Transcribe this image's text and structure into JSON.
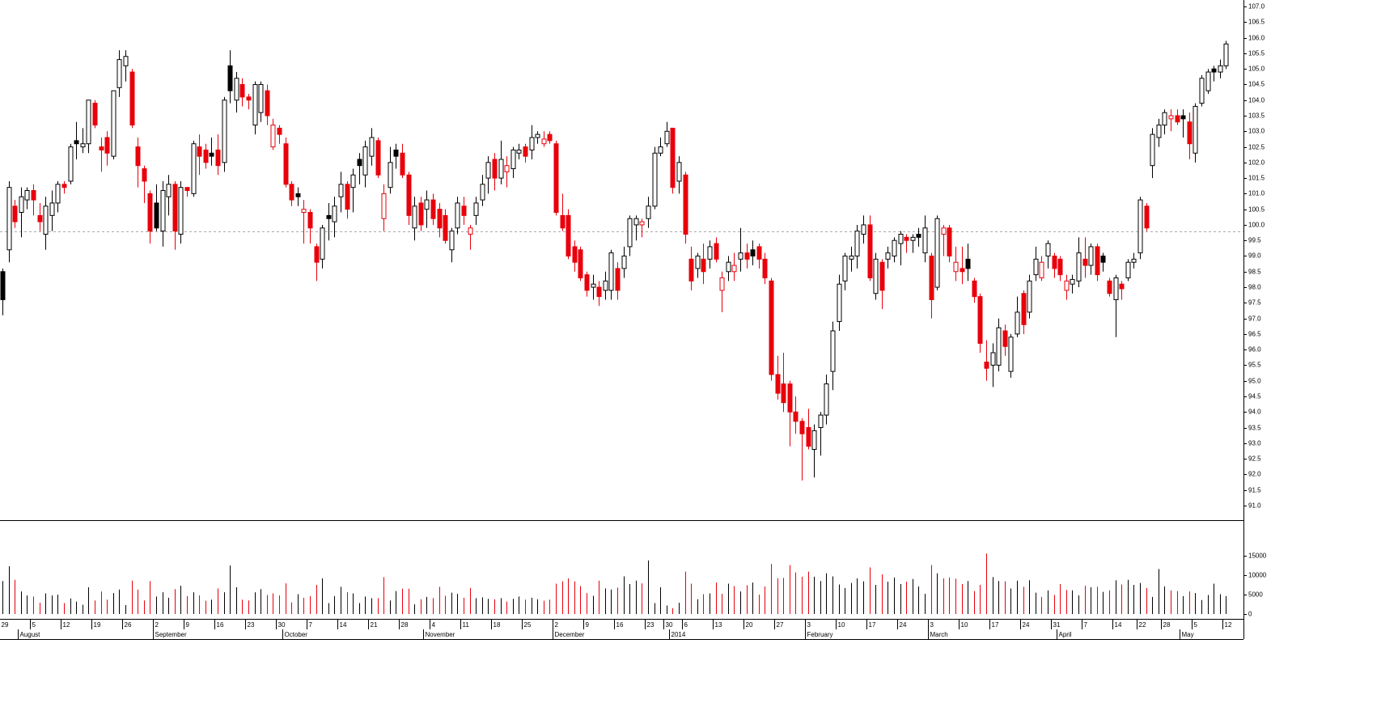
{
  "chart_data": {
    "type": "candlestick",
    "categories": [
      "29",
      null,
      null,
      null,
      null,
      "5",
      null,
      null,
      null,
      null,
      "12",
      null,
      null,
      null,
      null,
      "19",
      null,
      null,
      null,
      null,
      "26",
      null,
      null,
      null,
      null,
      "2",
      null,
      null,
      null,
      null,
      "9",
      null,
      null,
      null,
      null,
      "16",
      null,
      null,
      null,
      null,
      "23",
      null,
      null,
      null,
      null,
      "30",
      null,
      null,
      null,
      null,
      "7",
      null,
      null,
      null,
      null,
      "14",
      null,
      null,
      null,
      null,
      "21",
      null,
      null,
      null,
      null,
      "28",
      null,
      null,
      null,
      null,
      "4",
      null,
      null,
      null,
      null,
      "11",
      null,
      null,
      null,
      null,
      "18",
      null,
      null,
      null,
      null,
      "25",
      null,
      null,
      null,
      null,
      "2",
      null,
      null,
      null,
      null,
      "9",
      null,
      null,
      null,
      null,
      "16",
      null,
      null,
      null,
      null,
      "23",
      null,
      null,
      "30",
      null,
      null,
      "6",
      null,
      null,
      null,
      null,
      "13",
      null,
      null,
      null,
      null,
      "20",
      null,
      null,
      null,
      null,
      "27",
      null,
      null,
      null,
      null,
      "3",
      null,
      null,
      null,
      null,
      "10",
      null,
      null,
      null,
      null,
      "17",
      null,
      null,
      null,
      null,
      "24",
      null,
      null,
      null,
      null,
      "3",
      null,
      null,
      null,
      null,
      "10",
      null,
      null,
      null,
      null,
      "17",
      null,
      null,
      null,
      null,
      "24",
      null,
      null,
      null,
      null,
      "31",
      null,
      null,
      null,
      null,
      "7",
      null,
      null,
      null,
      null,
      "14",
      null,
      null,
      null,
      "22",
      null,
      null,
      null,
      "28",
      null,
      null,
      null,
      null,
      "5",
      null,
      null,
      null,
      null,
      "12"
    ],
    "months": [
      null,
      null,
      null,
      "August",
      null,
      null,
      null,
      null,
      null,
      null,
      null,
      null,
      null,
      null,
      null,
      null,
      null,
      null,
      null,
      null,
      null,
      null,
      null,
      null,
      null,
      "September",
      null,
      null,
      null,
      null,
      null,
      null,
      null,
      null,
      null,
      null,
      null,
      null,
      null,
      null,
      null,
      null,
      null,
      null,
      null,
      null,
      "October",
      null,
      null,
      null,
      null,
      null,
      null,
      null,
      null,
      null,
      null,
      null,
      null,
      null,
      null,
      null,
      null,
      null,
      null,
      null,
      null,
      null,
      null,
      "November",
      null,
      null,
      null,
      null,
      null,
      null,
      null,
      null,
      null,
      null,
      null,
      null,
      null,
      null,
      null,
      null,
      null,
      null,
      null,
      null,
      "December",
      null,
      null,
      null,
      null,
      null,
      null,
      null,
      null,
      null,
      null,
      null,
      null,
      null,
      null,
      null,
      null,
      null,
      null,
      "2014",
      null,
      null,
      null,
      null,
      null,
      null,
      null,
      null,
      null,
      null,
      null,
      null,
      null,
      null,
      null,
      null,
      null,
      null,
      null,
      null,
      null,
      "February",
      null,
      null,
      null,
      null,
      null,
      null,
      null,
      null,
      null,
      null,
      null,
      null,
      null,
      null,
      null,
      null,
      null,
      null,
      null,
      "March",
      null,
      null,
      null,
      null,
      null,
      null,
      null,
      null,
      null,
      null,
      null,
      null,
      null,
      null,
      null,
      null,
      null,
      null,
      null,
      null,
      "April",
      null,
      null,
      null,
      null,
      null,
      null,
      null,
      null,
      null,
      null,
      null,
      null,
      null,
      null,
      null,
      null,
      null,
      null,
      null,
      "May",
      null,
      null,
      null,
      null,
      null,
      null,
      null
    ],
    "open": [
      98.5,
      99.2,
      100.6,
      100.4,
      100.8,
      101.1,
      100.3,
      99.7,
      100.3,
      100.7,
      101.3,
      101.4,
      102.7,
      102.5,
      102.6,
      103.9,
      102.5,
      102.8,
      102.2,
      104.4,
      105.1,
      104.9,
      102.5,
      101.8,
      101.0,
      100.7,
      99.8,
      100.9,
      101.3,
      99.7,
      101.2,
      101.0,
      102.5,
      102.4,
      102.3,
      102.4,
      102.0,
      105.1,
      104.0,
      104.5,
      104.1,
      103.2,
      103.6,
      104.3,
      102.5,
      103.1,
      102.6,
      101.3,
      101.0,
      100.4,
      100.4,
      99.3,
      98.9,
      100.3,
      100.1,
      100.9,
      101.3,
      101.2,
      102.1,
      101.6,
      102.2,
      102.7,
      100.2,
      101.2,
      102.4,
      102.3,
      101.6,
      99.9,
      100.7,
      100.5,
      100.8,
      100.5,
      100.3,
      99.2,
      99.9,
      100.6,
      99.7,
      100.3,
      100.8,
      101.5,
      102.1,
      101.5,
      101.7,
      101.8,
      102.3,
      102.5,
      102.4,
      102.8,
      102.6,
      102.9,
      102.6,
      100.3,
      100.3,
      99.3,
      99.2,
      98.4,
      98.0,
      98.0,
      97.9,
      97.9,
      98.6,
      98.6,
      99.3,
      100.0,
      100.0,
      100.2,
      100.6,
      102.3,
      102.6,
      103.1,
      101.4,
      101.6,
      98.9,
      98.6,
      98.9,
      98.9,
      99.4,
      97.9,
      98.5,
      98.5,
      98.9,
      99.1,
      99.2,
      99.3,
      98.9,
      98.2,
      95.2,
      94.9,
      94.9,
      94.0,
      93.7,
      93.5,
      92.8,
      93.5,
      93.9,
      95.3,
      96.9,
      98.2,
      98.9,
      99.0,
      99.7,
      100.0,
      97.8,
      98.8,
      98.9,
      99.0,
      99.4,
      99.6,
      99.5,
      99.7,
      99.1,
      99.0,
      98.0,
      99.7,
      99.9,
      98.5,
      98.6,
      98.9,
      98.2,
      97.7,
      95.6,
      95.5,
      95.5,
      96.6,
      95.3,
      96.5,
      97.8,
      97.2,
      98.4,
      98.3,
      99.0,
      99.0,
      98.9,
      97.9,
      98.1,
      98.2,
      98.9,
      98.7,
      99.3,
      99.0,
      98.2,
      97.6,
      98.1,
      98.3,
      98.8,
      99.1,
      100.6,
      101.9,
      102.8,
      103.2,
      103.4,
      103.5,
      103.5,
      103.3,
      102.3,
      103.9,
      104.3,
      105.0,
      104.9,
      105.1
    ],
    "high": [
      98.6,
      101.4,
      100.8,
      101.2,
      101.2,
      101.3,
      100.7,
      100.9,
      101.1,
      101.4,
      101.4,
      102.6,
      103.3,
      103.1,
      104.0,
      104.0,
      102.8,
      103.0,
      104.3,
      105.6,
      105.6,
      105.0,
      102.8,
      101.9,
      101.1,
      101.3,
      101.4,
      101.6,
      101.4,
      101.4,
      101.2,
      102.7,
      102.9,
      102.6,
      102.8,
      102.9,
      104.1,
      105.6,
      104.9,
      104.7,
      104.2,
      104.6,
      104.6,
      104.5,
      103.4,
      103.2,
      102.8,
      101.4,
      101.2,
      100.8,
      100.5,
      99.4,
      100.0,
      100.7,
      100.9,
      101.7,
      101.4,
      101.8,
      102.3,
      102.7,
      103.1,
      102.8,
      101.3,
      102.5,
      102.6,
      102.6,
      101.7,
      100.9,
      100.9,
      101.1,
      101.0,
      100.7,
      100.5,
      99.9,
      100.9,
      100.9,
      100.0,
      100.9,
      101.6,
      102.2,
      102.3,
      102.7,
      102.2,
      102.5,
      102.6,
      102.6,
      103.2,
      103.0,
      103.0,
      103.0,
      102.7,
      101.0,
      100.5,
      99.5,
      99.3,
      98.5,
      98.4,
      98.2,
      98.5,
      99.2,
      98.8,
      99.3,
      100.3,
      100.3,
      100.2,
      100.9,
      102.5,
      102.8,
      103.3,
      103.1,
      102.2,
      101.7,
      99.3,
      99.1,
      99.4,
      99.5,
      99.6,
      98.5,
      99.0,
      99.1,
      99.9,
      99.4,
      99.5,
      99.4,
      99.1,
      98.3,
      95.8,
      95.9,
      95.0,
      94.5,
      93.8,
      94.1,
      93.6,
      94.0,
      95.2,
      96.9,
      98.4,
      99.1,
      99.3,
      100.0,
      100.3,
      100.3,
      99.1,
      98.9,
      99.3,
      99.6,
      99.8,
      99.7,
      99.7,
      99.9,
      100.3,
      99.1,
      100.3,
      100.0,
      100.0,
      99.3,
      99.3,
      99.4,
      98.3,
      97.8,
      96.3,
      96.2,
      97.0,
      96.8,
      96.5,
      97.7,
      97.9,
      98.4,
      99.3,
      99.0,
      99.5,
      99.1,
      99.0,
      98.4,
      98.4,
      99.6,
      99.6,
      99.4,
      99.4,
      99.1,
      98.3,
      98.4,
      98.2,
      98.9,
      99.1,
      100.9,
      100.7,
      103.1,
      103.4,
      103.7,
      103.7,
      103.7,
      103.7,
      103.6,
      103.9,
      104.8,
      105.0,
      105.1,
      105.3,
      105.9
    ],
    "low": [
      97.1,
      98.8,
      99.9,
      99.6,
      100.5,
      100.3,
      99.8,
      99.2,
      99.8,
      100.4,
      101.0,
      101.3,
      102.1,
      102.3,
      102.3,
      103.1,
      101.7,
      101.9,
      102.1,
      104.1,
      104.6,
      103.1,
      101.2,
      100.7,
      99.4,
      99.8,
      99.3,
      100.3,
      99.2,
      99.4,
      100.9,
      100.9,
      101.6,
      101.8,
      101.9,
      101.6,
      101.7,
      103.9,
      103.6,
      103.8,
      103.7,
      102.9,
      103.3,
      103.2,
      102.4,
      102.6,
      101.2,
      100.6,
      100.6,
      99.4,
      99.4,
      98.2,
      98.6,
      99.5,
      99.6,
      100.4,
      100.2,
      100.4,
      101.3,
      101.2,
      101.9,
      101.5,
      99.8,
      101.0,
      101.8,
      101.5,
      100.0,
      99.5,
      99.8,
      99.9,
      100.0,
      99.6,
      99.4,
      98.8,
      99.7,
      100.0,
      99.2,
      100.0,
      100.6,
      101.0,
      101.1,
      101.3,
      101.2,
      101.5,
      102.1,
      102.0,
      102.1,
      102.6,
      102.5,
      102.6,
      100.3,
      99.8,
      98.9,
      98.5,
      98.2,
      97.7,
      97.6,
      97.4,
      97.6,
      97.6,
      97.6,
      98.3,
      99.0,
      99.5,
      99.6,
      99.9,
      100.5,
      102.2,
      102.5,
      101.0,
      101.0,
      99.4,
      97.9,
      98.3,
      98.1,
      98.6,
      98.8,
      97.2,
      98.2,
      98.2,
      98.5,
      98.6,
      98.7,
      98.6,
      98.1,
      95.0,
      94.4,
      94.0,
      92.9,
      93.3,
      91.8,
      92.8,
      91.9,
      92.6,
      93.6,
      94.7,
      96.6,
      97.9,
      98.5,
      98.6,
      99.4,
      98.2,
      97.6,
      97.3,
      98.6,
      98.8,
      98.7,
      99.1,
      99.1,
      99.3,
      98.8,
      97.0,
      97.9,
      99.0,
      98.8,
      98.2,
      98.1,
      98.2,
      97.5,
      95.9,
      95.0,
      94.8,
      95.3,
      95.8,
      95.1,
      96.4,
      96.5,
      97.0,
      98.2,
      98.2,
      98.6,
      98.3,
      98.2,
      97.6,
      97.8,
      98.0,
      98.3,
      98.4,
      98.2,
      98.5,
      97.7,
      96.4,
      97.6,
      98.2,
      98.6,
      98.9,
      99.8,
      101.5,
      102.5,
      102.9,
      103.0,
      103.2,
      102.8,
      102.1,
      102.0,
      103.8,
      104.2,
      104.6,
      104.7,
      105.0
    ],
    "close": [
      97.6,
      101.2,
      100.1,
      100.9,
      101.1,
      100.8,
      100.1,
      100.6,
      100.7,
      101.3,
      101.2,
      102.5,
      102.6,
      102.6,
      104.0,
      103.2,
      102.4,
      102.3,
      104.3,
      105.3,
      105.4,
      103.2,
      101.9,
      101.4,
      99.8,
      99.9,
      101.1,
      101.3,
      99.8,
      101.2,
      101.1,
      102.6,
      102.2,
      102.0,
      102.2,
      101.9,
      104.0,
      104.3,
      104.7,
      104.1,
      104.0,
      104.5,
      104.5,
      103.5,
      103.2,
      102.9,
      101.3,
      100.8,
      100.9,
      100.5,
      99.9,
      98.8,
      99.9,
      100.2,
      100.6,
      101.3,
      100.5,
      101.6,
      101.9,
      102.5,
      102.8,
      101.6,
      101.0,
      102.0,
      102.2,
      101.6,
      100.3,
      100.6,
      100.0,
      100.8,
      100.2,
      99.9,
      99.5,
      99.8,
      100.7,
      100.3,
      99.9,
      100.7,
      101.3,
      102.0,
      101.5,
      102.1,
      101.9,
      102.4,
      102.4,
      102.2,
      102.8,
      102.9,
      102.75,
      102.7,
      100.4,
      99.9,
      99.0,
      98.8,
      98.3,
      97.9,
      98.1,
      97.7,
      98.2,
      99.1,
      97.9,
      99.0,
      100.2,
      100.2,
      100.1,
      100.6,
      102.3,
      102.5,
      103.0,
      101.2,
      102.0,
      99.7,
      98.2,
      99.0,
      98.5,
      99.3,
      98.9,
      98.3,
      98.8,
      98.7,
      99.1,
      98.9,
      99.0,
      98.9,
      98.3,
      95.2,
      94.6,
      94.3,
      94.0,
      93.7,
      93.3,
      92.9,
      93.4,
      93.9,
      94.9,
      96.6,
      98.1,
      99.0,
      99.0,
      99.8,
      100.0,
      98.3,
      98.9,
      97.9,
      99.1,
      99.5,
      99.7,
      99.5,
      99.6,
      99.6,
      99.9,
      97.6,
      100.2,
      99.9,
      99.0,
      98.8,
      98.5,
      98.6,
      97.7,
      96.2,
      95.4,
      95.9,
      96.7,
      96.1,
      96.4,
      97.2,
      96.8,
      98.2,
      98.9,
      98.8,
      99.4,
      98.6,
      98.4,
      98.2,
      98.25,
      99.1,
      98.7,
      99.3,
      98.4,
      98.8,
      97.8,
      98.3,
      97.95,
      98.8,
      98.9,
      100.8,
      99.9,
      102.9,
      103.2,
      103.6,
      103.5,
      103.3,
      103.4,
      102.6,
      103.8,
      104.7,
      104.9,
      104.9,
      105.1,
      105.8
    ],
    "volume": [
      8500,
      12300,
      8800,
      5800,
      4800,
      4500,
      2900,
      5300,
      4800,
      5000,
      2800,
      4000,
      3200,
      2400,
      6900,
      3500,
      5800,
      3700,
      5400,
      6300,
      2300,
      8600,
      6300,
      3500,
      8500,
      4500,
      5600,
      4200,
      6400,
      7300,
      4600,
      5600,
      4800,
      3400,
      3700,
      6600,
      5600,
      12500,
      6900,
      3700,
      3500,
      5600,
      6400,
      4900,
      5300,
      4800,
      7900,
      3000,
      5100,
      4200,
      4600,
      7500,
      9200,
      2800,
      4600,
      7000,
      5600,
      5300,
      2800,
      4500,
      4100,
      4100,
      9500,
      3500,
      5900,
      6500,
      6500,
      2500,
      3800,
      4400,
      4100,
      7000,
      4700,
      5500,
      5200,
      4200,
      6700,
      4100,
      4300,
      3900,
      3800,
      4100,
      3200,
      3900,
      4500,
      3700,
      4200,
      3800,
      3400,
      3700,
      7800,
      8400,
      9200,
      8400,
      7200,
      5400,
      4700,
      8600,
      6600,
      6300,
      6800,
      9700,
      7700,
      8600,
      7900,
      13800,
      2800,
      6900,
      2200,
      1500,
      2900,
      10900,
      7800,
      3800,
      5100,
      5300,
      8100,
      5200,
      7800,
      7200,
      5800,
      7400,
      8100,
      5000,
      7100,
      12900,
      9200,
      9300,
      12600,
      10700,
      9600,
      10900,
      9600,
      8500,
      10500,
      9700,
      7600,
      6700,
      8000,
      9200,
      8400,
      12000,
      7500,
      10200,
      8300,
      9400,
      7700,
      8300,
      9000,
      7100,
      5200,
      12600,
      10500,
      9200,
      9400,
      9100,
      7700,
      8500,
      5900,
      7500,
      15600,
      9500,
      8500,
      8400,
      6600,
      8600,
      7000,
      8700,
      5500,
      4400,
      6100,
      4900,
      7700,
      6200,
      6100,
      4800,
      7300,
      6900,
      7000,
      5700,
      6100,
      8700,
      7600,
      8800,
      7500,
      8000,
      6700,
      4400,
      11600,
      7100,
      6100,
      5900,
      4600,
      5800,
      5400,
      3600,
      4900,
      7800,
      5100,
      4600
    ],
    "ylim": [
      90.53,
      107.21
    ],
    "yticks": [
      {
        "value": 91,
        "label": "91.0"
      },
      {
        "value": 91.5,
        "label": "91.5"
      },
      {
        "value": 92,
        "label": "92.0"
      },
      {
        "value": 92.5,
        "label": "92.5"
      },
      {
        "value": 93,
        "label": "93.0"
      },
      {
        "value": 93.5,
        "label": "93.5"
      },
      {
        "value": 94,
        "label": "94.0"
      },
      {
        "value": 94.5,
        "label": "94.5"
      },
      {
        "value": 95,
        "label": "95.0"
      },
      {
        "value": 95.5,
        "label": "95.5"
      },
      {
        "value": 96,
        "label": "96.0"
      },
      {
        "value": 96.5,
        "label": "96.5"
      },
      {
        "value": 97,
        "label": "97.0"
      },
      {
        "value": 97.5,
        "label": "97.5"
      },
      {
        "value": 98,
        "label": "98.0"
      },
      {
        "value": 98.5,
        "label": "98.5"
      },
      {
        "value": 99,
        "label": "99.0"
      },
      {
        "value": 99.5,
        "label": "99.5"
      },
      {
        "value": 100,
        "label": "100.0"
      },
      {
        "value": 100.5,
        "label": "100.5"
      },
      {
        "value": 101,
        "label": "101.0"
      },
      {
        "value": 101.5,
        "label": "101.5"
      },
      {
        "value": 102,
        "label": "102.0"
      },
      {
        "value": 102.5,
        "label": "102.5"
      },
      {
        "value": 103,
        "label": "103.0"
      },
      {
        "value": 103.5,
        "label": "103.5"
      },
      {
        "value": 104,
        "label": "104.0"
      },
      {
        "value": 104.5,
        "label": "104.5"
      },
      {
        "value": 105,
        "label": "105.0"
      },
      {
        "value": 105.5,
        "label": "105.5"
      },
      {
        "value": 106,
        "label": "106.0"
      },
      {
        "value": 106.5,
        "label": "106.5"
      },
      {
        "value": 107,
        "label": "107.0"
      }
    ],
    "volume_ylim": [
      -1250,
      23750
    ],
    "volume_yticks": [
      0,
      5000,
      10000,
      15000
    ],
    "reference_line": 99.8,
    "up_color": "#000000",
    "down_color": "#e8000b"
  }
}
